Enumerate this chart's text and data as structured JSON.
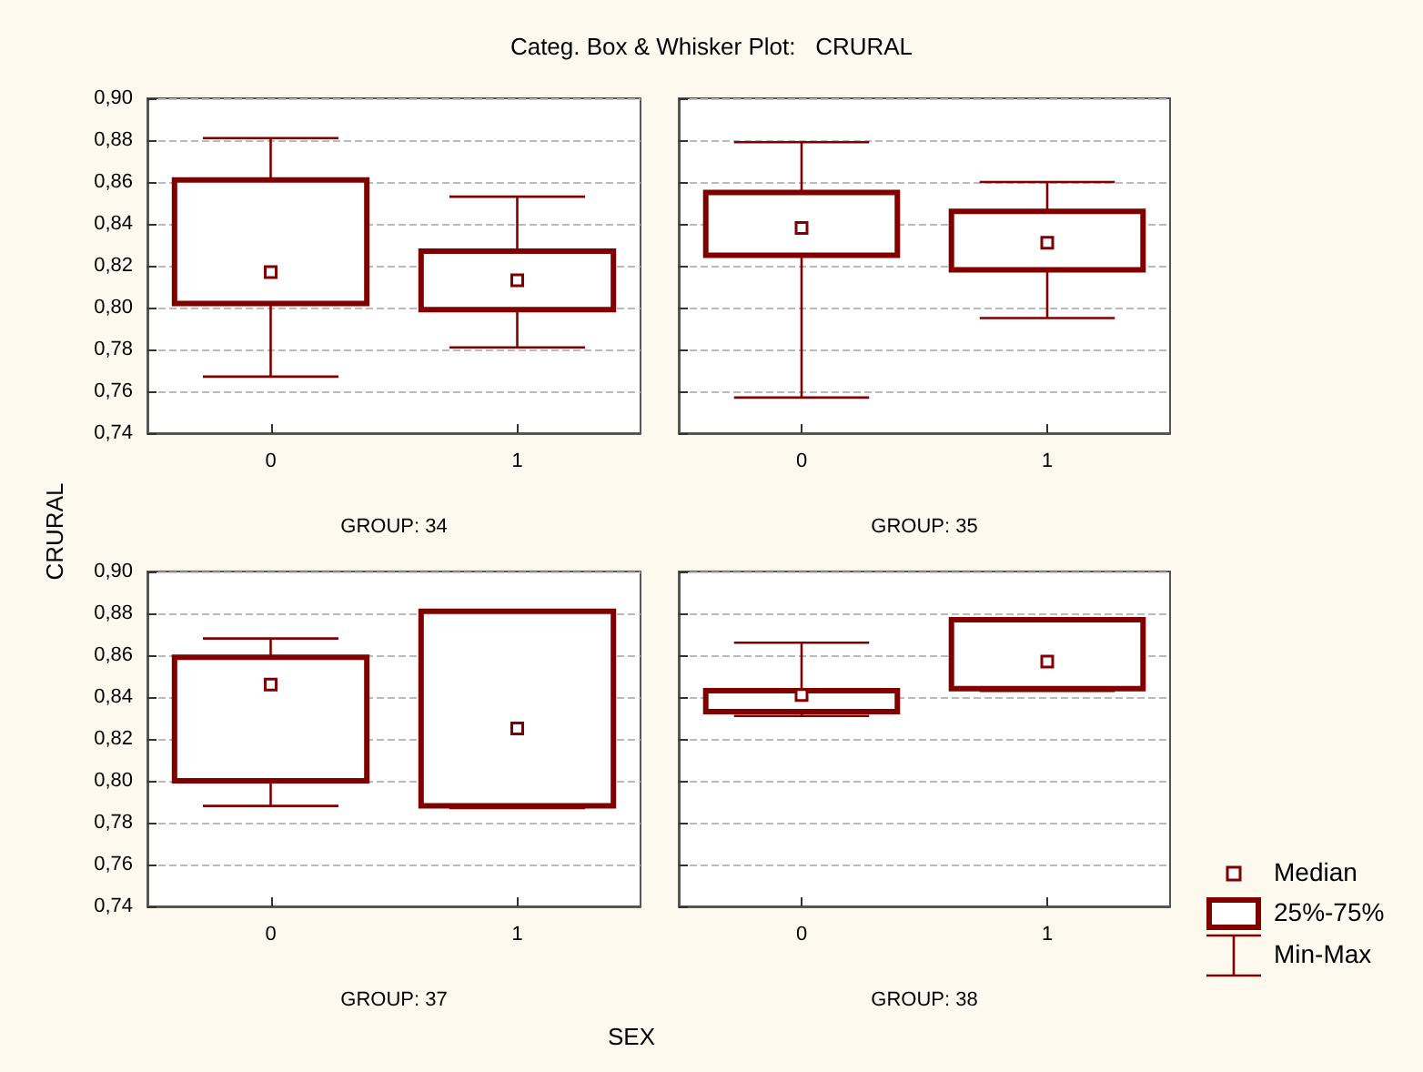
{
  "chart_data": [
    {
      "type": "box",
      "title": "Categ. Box & Whisker Plot:   CRURAL",
      "ylabel": "CRURAL",
      "xlabel": "GROUP: 34",
      "annotations": [
        "SEX"
      ],
      "categories": [
        "0",
        "1"
      ],
      "color": "#800000",
      "marker": "square",
      "grid": "y",
      "ylim": [
        0.74,
        0.9
      ],
      "yticks": [
        {
          "value": 0.74,
          "label": "0,74"
        },
        {
          "value": 0.76,
          "label": "0,76"
        },
        {
          "value": 0.78,
          "label": "0,78"
        },
        {
          "value": 0.8,
          "label": "0,80"
        },
        {
          "value": 0.82,
          "label": "0,82"
        },
        {
          "value": 0.84,
          "label": "0,84"
        },
        {
          "value": 0.86,
          "label": "0,86"
        },
        {
          "value": 0.88,
          "label": "0,88"
        },
        {
          "value": 0.9,
          "label": "0,90"
        }
      ],
      "boxes": [
        {
          "low": 0.767,
          "q1": 0.802,
          "median": 0.817,
          "q3": 0.861,
          "high": 0.881
        },
        {
          "low": 0.781,
          "q1": 0.799,
          "median": 0.813,
          "q3": 0.827,
          "high": 0.853
        }
      ]
    },
    {
      "type": "box",
      "xlabel": "GROUP: 35",
      "categories": [
        "0",
        "1"
      ],
      "color": "#800000",
      "marker": "square",
      "grid": "y",
      "tick_labels": "x",
      "ylim": [
        0.74,
        0.9
      ],
      "yticks": [
        {
          "value": 0.74,
          "label": null
        },
        {
          "value": 0.76,
          "label": null
        },
        {
          "value": 0.78,
          "label": null
        },
        {
          "value": 0.8,
          "label": null
        },
        {
          "value": 0.82,
          "label": null
        },
        {
          "value": 0.84,
          "label": null
        },
        {
          "value": 0.86,
          "label": null
        },
        {
          "value": 0.88,
          "label": null
        },
        {
          "value": 0.9,
          "label": null
        }
      ],
      "boxes": [
        {
          "low": 0.757,
          "q1": 0.825,
          "median": 0.838,
          "q3": 0.855,
          "high": 0.879
        },
        {
          "low": 0.795,
          "q1": 0.818,
          "median": 0.831,
          "q3": 0.846,
          "high": 0.86
        }
      ]
    },
    {
      "type": "box",
      "xlabel": "GROUP: 37",
      "categories": [
        "0",
        "1"
      ],
      "color": "#800000",
      "marker": "square",
      "grid": "y",
      "ylim": [
        0.74,
        0.9
      ],
      "yticks": [
        {
          "value": 0.74,
          "label": "0,74"
        },
        {
          "value": 0.76,
          "label": "0,76"
        },
        {
          "value": 0.78,
          "label": "0,78"
        },
        {
          "value": 0.8,
          "label": "0,80"
        },
        {
          "value": 0.82,
          "label": "0,82"
        },
        {
          "value": 0.84,
          "label": "0,84"
        },
        {
          "value": 0.86,
          "label": "0,86"
        },
        {
          "value": 0.88,
          "label": "0,88"
        },
        {
          "value": 0.9,
          "label": "0,90"
        }
      ],
      "boxes": [
        {
          "low": 0.788,
          "q1": 0.8,
          "median": 0.846,
          "q3": 0.859,
          "high": 0.868
        },
        {
          "low": 0.787,
          "q1": 0.788,
          "median": 0.825,
          "q3": 0.881,
          "high": 0.881
        }
      ]
    },
    {
      "type": "box",
      "xlabel": "GROUP: 38",
      "annotations": [
        "Median",
        "25%-75%",
        "Min-Max"
      ],
      "categories": [
        "0",
        "1"
      ],
      "color": "#800000",
      "marker": "square",
      "grid": "y",
      "tick_labels": "x",
      "ylim": [
        0.74,
        0.9
      ],
      "yticks": [
        {
          "value": 0.74,
          "label": null
        },
        {
          "value": 0.76,
          "label": null
        },
        {
          "value": 0.78,
          "label": null
        },
        {
          "value": 0.8,
          "label": null
        },
        {
          "value": 0.82,
          "label": null
        },
        {
          "value": 0.84,
          "label": null
        },
        {
          "value": 0.86,
          "label": null
        },
        {
          "value": 0.88,
          "label": null
        },
        {
          "value": 0.9,
          "label": null
        }
      ],
      "boxes": [
        {
          "low": 0.831,
          "q1": 0.833,
          "median": 0.841,
          "q3": 0.843,
          "high": 0.866
        },
        {
          "low": 0.843,
          "q1": 0.844,
          "median": 0.857,
          "q3": 0.877,
          "high": 0.877
        }
      ]
    }
  ]
}
